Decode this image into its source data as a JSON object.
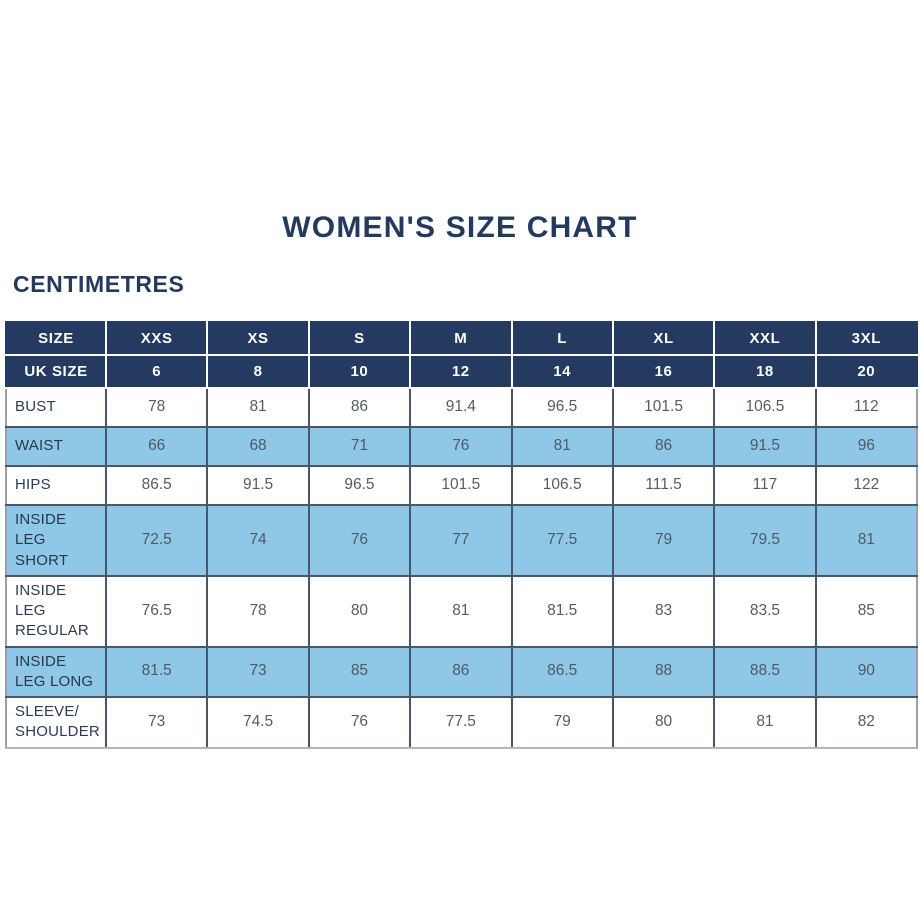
{
  "title": "WOMEN'S SIZE CHART",
  "units_label": "CENTIMETRES",
  "colors": {
    "navy": "#243a60",
    "light_blue": "#8ec8e6",
    "title_text": "#233a5c",
    "body_text": "#565c64",
    "label_text": "#2d3b52"
  },
  "chart_data": {
    "type": "table",
    "header_rows": [
      [
        "SIZE",
        "XXS",
        "XS",
        "S",
        "M",
        "L",
        "XL",
        "XXL",
        "3XL"
      ],
      [
        "UK SIZE",
        "6",
        "8",
        "10",
        "12",
        "14",
        "16",
        "18",
        "20"
      ]
    ],
    "rows": [
      {
        "label": "BUST",
        "shaded": false,
        "values": [
          "78",
          "81",
          "86",
          "91.4",
          "96.5",
          "101.5",
          "106.5",
          "112"
        ]
      },
      {
        "label": "WAIST",
        "shaded": true,
        "values": [
          "66",
          "68",
          "71",
          "76",
          "81",
          "86",
          "91.5",
          "96"
        ]
      },
      {
        "label": "HIPS",
        "shaded": false,
        "values": [
          "86.5",
          "91.5",
          "96.5",
          "101.5",
          "106.5",
          "111.5",
          "117",
          "122"
        ]
      },
      {
        "label": "INSIDE LEG SHORT",
        "shaded": true,
        "values": [
          "72.5",
          "74",
          "76",
          "77",
          "77.5",
          "79",
          "79.5",
          "81"
        ]
      },
      {
        "label": "INSIDE LEG REGULAR",
        "shaded": false,
        "values": [
          "76.5",
          "78",
          "80",
          "81",
          "81.5",
          "83",
          "83.5",
          "85"
        ]
      },
      {
        "label": "INSIDE LEG LONG",
        "shaded": true,
        "values": [
          "81.5",
          "73",
          "85",
          "86",
          "86.5",
          "88",
          "88.5",
          "90"
        ]
      },
      {
        "label": "SLEEVE/ SHOULDER",
        "shaded": false,
        "values": [
          "73",
          "74.5",
          "76",
          "77.5",
          "79",
          "80",
          "81",
          "82"
        ]
      }
    ]
  }
}
